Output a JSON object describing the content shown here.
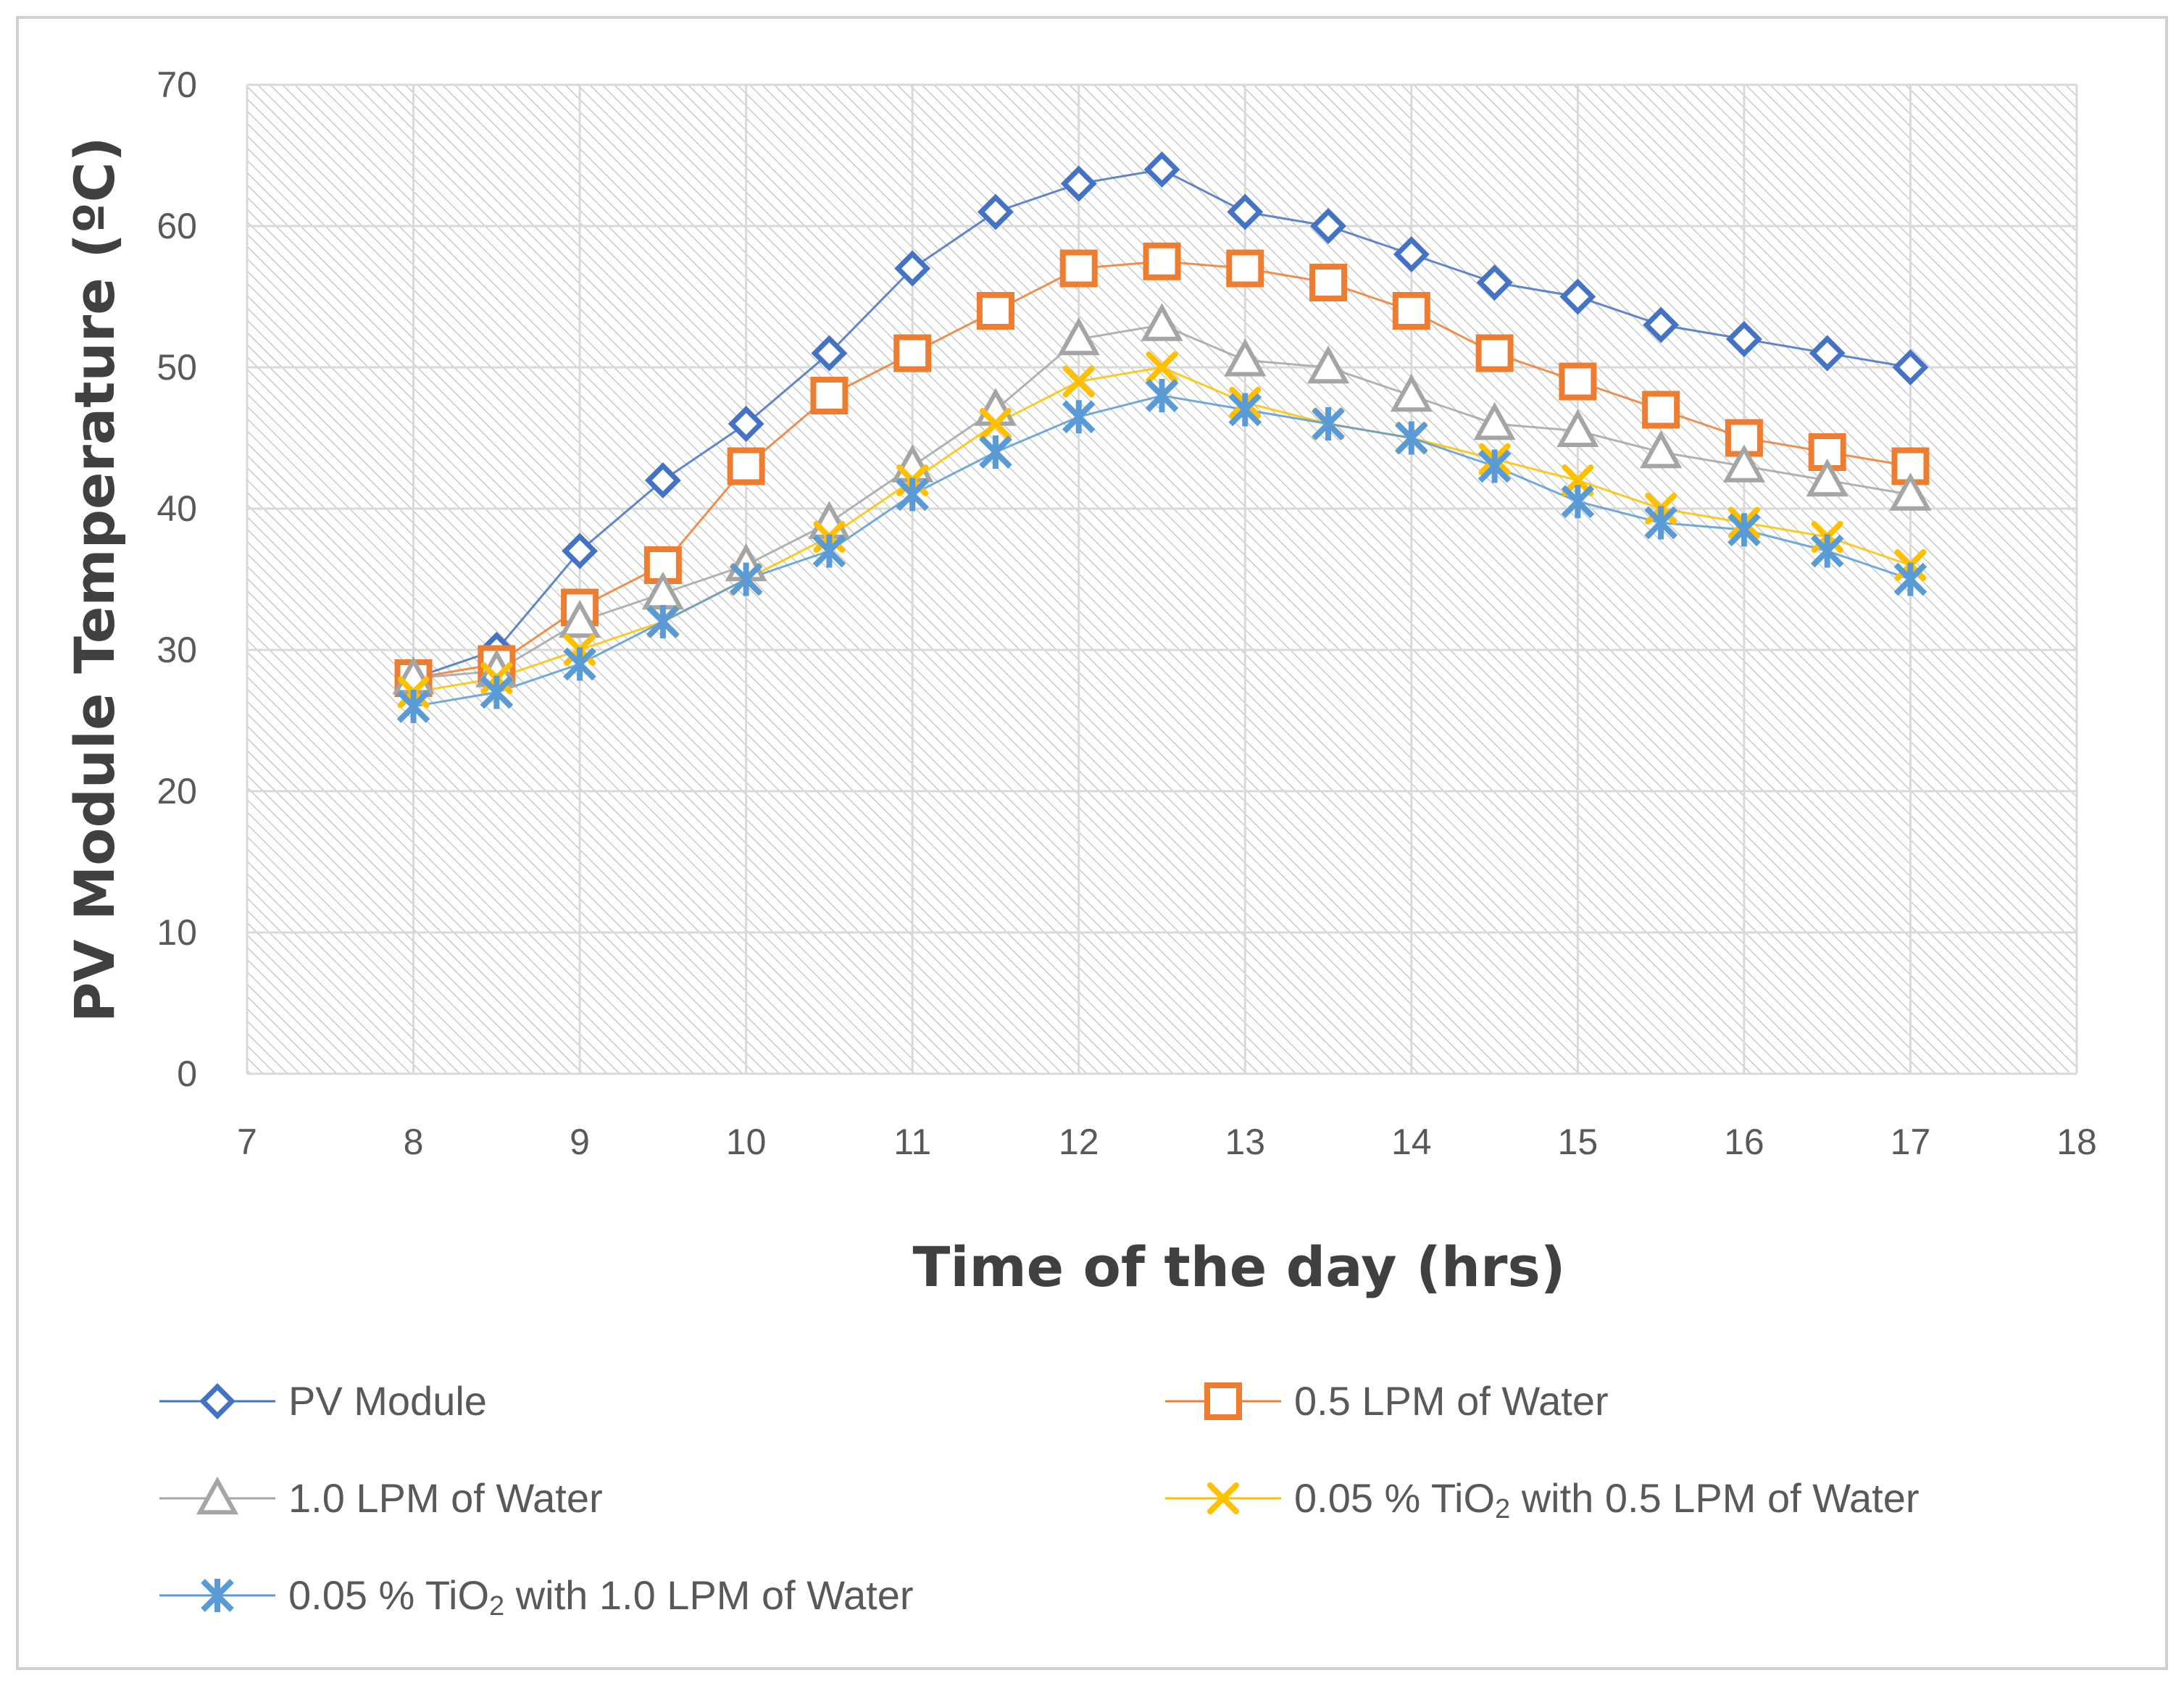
{
  "chart_data": {
    "type": "scatter",
    "mode": "lines+markers",
    "xlabel": "Time of the day (hrs)",
    "ylabel": "PV Module Temperature (ºC)",
    "xlim": [
      7,
      18
    ],
    "ylim": [
      0,
      70
    ],
    "x_ticks": [
      "7",
      "8",
      "9",
      "10",
      "11",
      "12",
      "13",
      "14",
      "15",
      "16",
      "17",
      "18"
    ],
    "y_ticks": [
      "0",
      "10",
      "20",
      "30",
      "40",
      "50",
      "60",
      "70"
    ],
    "grid": true,
    "legend_position": "bottom",
    "x": [
      8,
      8.5,
      9,
      9.5,
      10,
      10.5,
      11,
      11.5,
      12,
      12.5,
      13,
      13.5,
      14,
      14.5,
      15,
      15.5,
      16,
      16.5,
      17
    ],
    "series": [
      {
        "name": "PV Module",
        "marker": "diamond",
        "color": "#4472C4",
        "values": [
          28,
          30,
          37,
          42,
          46,
          51,
          57,
          61,
          63,
          64,
          61,
          60,
          58,
          56,
          55,
          53,
          52,
          51,
          50
        ]
      },
      {
        "name": "0.5 LPM of Water",
        "marker": "square",
        "color": "#ED7D31",
        "values": [
          28,
          29,
          33,
          36,
          43,
          48,
          51,
          54,
          57,
          57.5,
          57,
          56,
          54,
          51,
          49,
          47,
          45,
          44,
          43
        ]
      },
      {
        "name": "1.0 LPM of Water",
        "marker": "triangle",
        "color": "#A5A5A5",
        "values": [
          28,
          28.5,
          32,
          34,
          36,
          39,
          43,
          47,
          52,
          53,
          50.5,
          50,
          48,
          46,
          45.5,
          44,
          43,
          42,
          41
        ]
      },
      {
        "name": "0.05 % TiO2 with 0.5 LPM of Water",
        "marker": "x",
        "color": "#FFC000",
        "values": [
          27,
          28,
          30,
          32,
          35,
          38,
          42,
          46,
          49,
          50,
          47.5,
          46,
          45,
          43.5,
          42,
          40,
          39,
          38,
          36
        ]
      },
      {
        "name": "0.05 % TiO2 with 1.0 LPM of Water",
        "marker": "star",
        "color": "#5B9BD5",
        "values": [
          26,
          27,
          29,
          32,
          35,
          37,
          41,
          44,
          46.5,
          48,
          47,
          46,
          45,
          43,
          40.5,
          39,
          38.5,
          37,
          35
        ]
      }
    ]
  },
  "legend": {
    "item1": "PV Module",
    "item2": "0.5 LPM of Water",
    "item3": "1.0 LPM of Water",
    "item4_prefix": "0.05 % TiO",
    "item4_sub": "2",
    "item4_suffix": " with 0.5 LPM of Water",
    "item5_prefix": "0.05 % TiO",
    "item5_sub": "2",
    "item5_suffix": " with 1.0 LPM of Water"
  }
}
